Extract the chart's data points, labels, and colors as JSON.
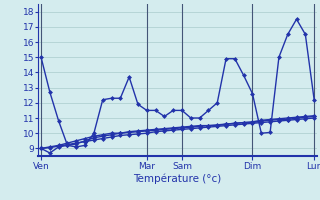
{
  "background_color": "#d4ecee",
  "grid_color": "#aacccc",
  "line_color": "#2233aa",
  "xlabel": "Température (°c)",
  "ylim": [
    8.5,
    18.5
  ],
  "yticks": [
    9,
    10,
    11,
    12,
    13,
    14,
    15,
    16,
    17,
    18
  ],
  "day_labels": [
    "Ven",
    "Mar",
    "Sam",
    "Dim",
    "Lun"
  ],
  "day_x_positions": [
    0,
    12,
    16,
    24,
    31
  ],
  "xlim": [
    -0.3,
    31.3
  ],
  "n_points": 32,
  "series_main": [
    15.0,
    12.7,
    10.8,
    9.2,
    9.1,
    9.2,
    10.0,
    12.2,
    12.3,
    12.3,
    13.7,
    11.9,
    11.5,
    11.5,
    11.1,
    11.5,
    11.5,
    11.0,
    11.0,
    11.5,
    12.0,
    14.9,
    14.9,
    13.8,
    12.6,
    10.0,
    10.05,
    15.0,
    16.5,
    17.5,
    16.5,
    12.2
  ],
  "series_low1": [
    9.0,
    8.7,
    9.1,
    9.2,
    9.3,
    9.5,
    9.7,
    9.8,
    9.9,
    10.0,
    10.05,
    10.1,
    10.15,
    10.2,
    10.25,
    10.3,
    10.35,
    10.4,
    10.45,
    10.5,
    10.5,
    10.6,
    10.65,
    10.7,
    10.7,
    10.8,
    10.85,
    10.9,
    10.9,
    11.0,
    11.05,
    11.1
  ],
  "series_low2": [
    9.0,
    9.05,
    9.15,
    9.25,
    9.35,
    9.45,
    9.55,
    9.65,
    9.75,
    9.85,
    9.9,
    9.95,
    10.0,
    10.1,
    10.15,
    10.2,
    10.25,
    10.3,
    10.35,
    10.4,
    10.45,
    10.5,
    10.55,
    10.6,
    10.65,
    10.7,
    10.75,
    10.8,
    10.85,
    10.9,
    10.95,
    11.0
  ],
  "series_low3": [
    9.0,
    9.1,
    9.2,
    9.35,
    9.5,
    9.65,
    9.8,
    9.9,
    10.0,
    10.0,
    10.1,
    10.15,
    10.2,
    10.25,
    10.3,
    10.35,
    10.4,
    10.45,
    10.5,
    10.5,
    10.55,
    10.6,
    10.65,
    10.7,
    10.75,
    10.85,
    10.9,
    10.95,
    11.0,
    11.05,
    11.1,
    11.15
  ],
  "vline_color": "#445577",
  "marker_size": 2.5,
  "linewidth": 1.0
}
